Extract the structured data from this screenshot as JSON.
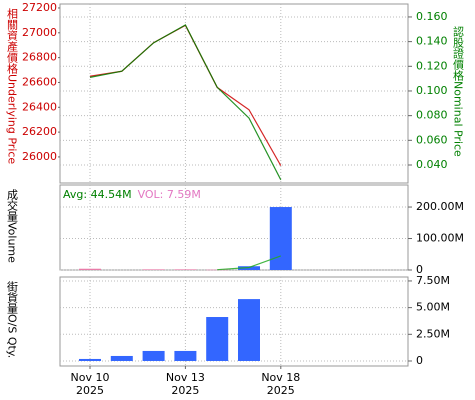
{
  "chart_data": [
    {
      "type": "line",
      "ylabel": "相關資產價格Underlying Price",
      "ylabel_color": "#cc0000",
      "y2label": "認股證價格Nominal Price",
      "y2label_color": "#008000",
      "ylim": [
        25790,
        27232
      ],
      "yticks": [
        26000,
        26200,
        26400,
        26600,
        26800,
        27000,
        27200
      ],
      "y2lim": [
        0.0254,
        0.1705
      ],
      "y2ticks": [
        {
          "value": 0.04,
          "label": "0.040"
        },
        {
          "value": 0.06,
          "label": "0.060"
        },
        {
          "value": 0.08,
          "label": "0.080"
        },
        {
          "value": 0.1,
          "label": "0.100"
        },
        {
          "value": 0.12,
          "label": "0.120"
        },
        {
          "value": 0.14,
          "label": "0.140"
        },
        {
          "value": 0.16,
          "label": "0.160"
        }
      ],
      "grid": true,
      "series": [
        {
          "color": "#cc0000",
          "values": [
            26650,
            26690,
            26920,
            27060,
            26560,
            26380,
            25930
          ]
        },
        {
          "color": "#008000",
          "axis": "y2",
          "values": [
            0.111,
            0.116,
            0.139,
            0.1535,
            0.103,
            0.078,
            0.028
          ]
        }
      ]
    },
    {
      "type": "bar",
      "ylabel": "成交量Volume",
      "ylabel_color": "#000000",
      "annotations": [
        {
          "text": "Avg: 44.54M",
          "color": "#008000"
        },
        {
          "text": "VOL: 7.59M",
          "color": "#e377c2"
        }
      ],
      "ylim": [
        0,
        270
      ],
      "yticks": [
        0,
        {
          "value": 100,
          "label": "100.00M"
        },
        {
          "value": 200,
          "label": "200.00M"
        }
      ],
      "grid": true,
      "series": [
        {
          "type": "bar",
          "values": [
            4,
            null,
            2,
            2,
            1,
            12,
            200
          ],
          "colors": [
            "#e87ca8",
            "#e87ca8",
            "#e87ca8",
            "#e87ca8",
            "#e87ca8",
            "#3366ff",
            "#3366ff"
          ]
        },
        {
          "type": "line",
          "color": "#22aa22",
          "values": [
            null,
            null,
            null,
            null,
            1,
            8,
            44.54
          ]
        }
      ]
    },
    {
      "type": "bar",
      "ylabel": "街貨量O/S Qty.",
      "ylabel_color": "#000000",
      "ylim": [
        -0.47,
        7.87
      ],
      "yticks": [
        0,
        {
          "value": 2.5,
          "label": "2.50M"
        },
        {
          "value": 5,
          "label": "5.00M"
        },
        {
          "value": 7.5,
          "label": "7.50M"
        }
      ],
      "grid": true,
      "categories": [
        "Nov 10",
        null,
        null,
        "Nov 13",
        null,
        null,
        "Nov 18"
      ],
      "category_years": [
        "2025",
        null,
        null,
        "2025",
        null,
        null,
        "2025"
      ],
      "series": [
        {
          "type": "bar",
          "values": [
            0.19,
            0.47,
            0.94,
            0.94,
            4.12,
            5.8,
            null
          ],
          "colors": [
            "#3366ff",
            "#3366ff",
            "#3366ff",
            "#3366ff",
            "#3366ff",
            "#3366ff",
            "#3366ff"
          ]
        }
      ]
    }
  ]
}
